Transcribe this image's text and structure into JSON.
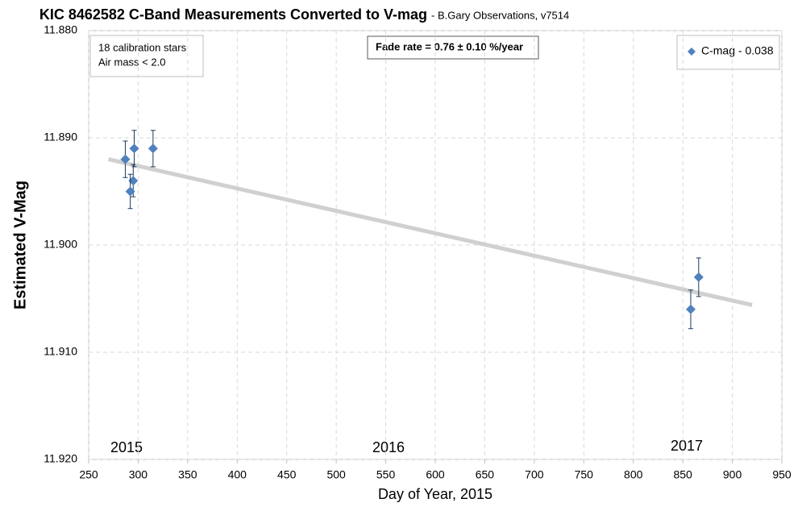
{
  "chart_data": {
    "type": "scatter",
    "title": "KIC 8462582 C-Band Measurements Converted to V-mag",
    "subtitle": "- B.Gary Observations, v7514",
    "x_label": "Day of Year, 2015",
    "y_label": "Estimated V-Mag",
    "annotations": [
      "18 calibration stars",
      "Air mass < 2.0",
      "Fade rate  = 0.76 ± 0.10 %/year",
      "2015",
      "2016",
      "2017"
    ],
    "xlim": [
      250,
      950
    ],
    "xticks": [
      250,
      300,
      350,
      400,
      450,
      500,
      550,
      600,
      650,
      700,
      750,
      800,
      850,
      900,
      950
    ],
    "ylim": [
      11.88,
      11.92
    ],
    "y_inverted": true,
    "yticks": [
      {
        "value": 11.88,
        "label": "11.880"
      },
      {
        "value": 11.89,
        "label": "11.890"
      },
      {
        "value": 11.9,
        "label": "11.900"
      },
      {
        "value": 11.91,
        "label": "11.910"
      },
      {
        "value": 11.92,
        "label": "11.920"
      }
    ],
    "grid": true,
    "legend": "top-right",
    "series": [
      {
        "name": "C-mag - 0.038",
        "color": "#4f81bd",
        "x": [
          287,
          296,
          295,
          292,
          315,
          858,
          866
        ],
        "values": [
          11.892,
          11.891,
          11.894,
          11.895,
          11.891,
          11.906,
          11.903
        ],
        "errors": [
          0.0017,
          0.0017,
          0.0015,
          0.0016,
          0.0017,
          0.0018,
          0.0018
        ]
      }
    ],
    "trend": {
      "color": "#d0d0d0",
      "x": [
        270,
        920
      ],
      "values": [
        11.892,
        11.9056
      ]
    }
  }
}
